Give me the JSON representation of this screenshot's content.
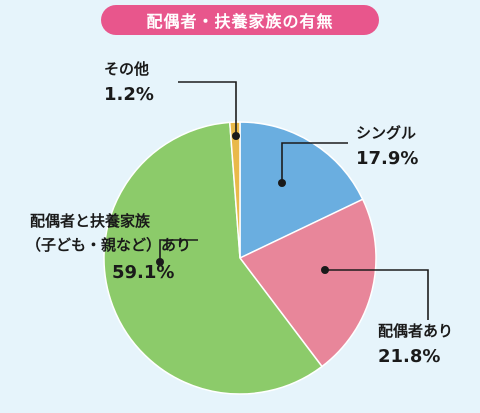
{
  "chart_data": {
    "type": "pie",
    "title": "配偶者・扶養家族の有無",
    "slices": [
      {
        "name": "シングル",
        "value": 17.9,
        "value_label": "17.9%",
        "color": "#6aaee0"
      },
      {
        "name": "配偶者あり",
        "value": 21.8,
        "value_label": "21.8%",
        "color": "#e8869a"
      },
      {
        "name_lines": [
          "配偶者と扶養家族",
          "（子ども・親など）あり"
        ],
        "value": 59.1,
        "value_label": "59.1%",
        "color": "#8ccb6a"
      },
      {
        "name": "その他",
        "value": 1.2,
        "value_label": "1.2%",
        "color": "#e9b94a"
      }
    ]
  }
}
